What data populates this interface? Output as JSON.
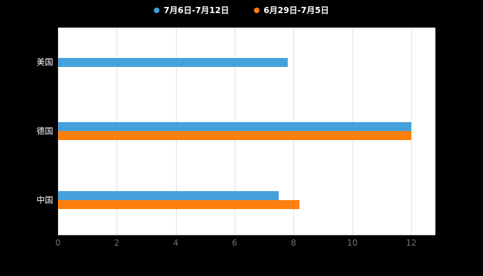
{
  "colors": {
    "background": "#000000",
    "plot_background": "#ffffff",
    "gridline": "#e0e0e0",
    "axis_tick_label": "#737373",
    "category_label": "#ffffff"
  },
  "legend": {
    "items": [
      {
        "label": "7月6日-7月12日",
        "color": "#45A1DB"
      },
      {
        "label": "6月29日-7月5日",
        "color": "#FF7F0E"
      }
    ]
  },
  "chart_data": {
    "type": "bar",
    "orientation": "horizontal",
    "title": "",
    "categories": [
      "美国",
      "德国",
      "中国"
    ],
    "series": [
      {
        "name": "7月6日-7月12日",
        "color": "#45A1DB",
        "values": [
          7.8,
          12,
          7.5
        ]
      },
      {
        "name": "6月29日-7月5日",
        "color": "#FF7F0E",
        "values": [
          0,
          12,
          8.2
        ]
      }
    ],
    "xlim": [
      0,
      12
    ],
    "xticks": [
      0,
      2,
      4,
      6,
      8,
      10,
      12
    ],
    "grid": true,
    "legend_position": "top"
  }
}
